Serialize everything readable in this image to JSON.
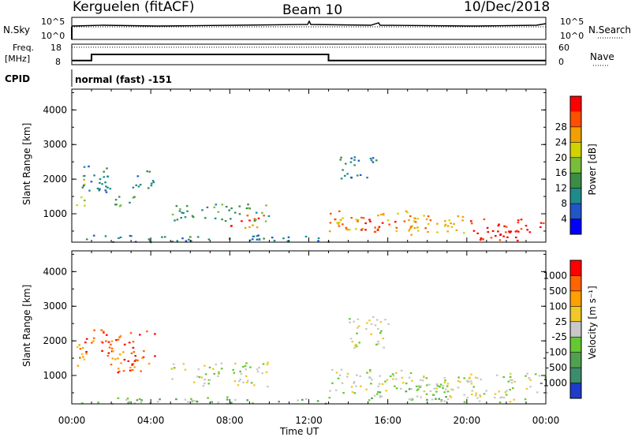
{
  "header": {
    "station": "Kerguelen (fitACF)",
    "beam": "Beam 10",
    "date": "10/Dec/2018"
  },
  "top_panels": {
    "nsky_label": "N.Sky",
    "nsearch_label": "N.Search",
    "nsky_ticks": [
      "10^5",
      "10^0"
    ],
    "nsearch_ticks": [
      "10^5",
      "10^0"
    ],
    "freq_label_1": "Freq.",
    "freq_label_2": "[MHz]",
    "freq_ticks": [
      "18",
      "8"
    ],
    "nave_label": "Nave",
    "nave_ticks": [
      "60",
      "0"
    ],
    "cpid_label": "CPID",
    "cpid_text": "normal (fast) -151",
    "freq_series": {
      "x_hours": [
        0,
        1,
        1,
        13,
        13,
        24
      ],
      "mhz": [
        10,
        10,
        13,
        13,
        10,
        10
      ]
    },
    "nave_level": 51
  },
  "chart_data": [
    {
      "type": "heatmap",
      "title": "Power",
      "ylabel": "Slant Range [km]",
      "xlabel": "Time UT",
      "x_ticks": [
        "00:00",
        "04:00",
        "08:00",
        "12:00",
        "16:00",
        "20:00",
        "00:00"
      ],
      "y_ticks": [
        "1000",
        "2000",
        "3000",
        "4000"
      ],
      "xlim": [
        0,
        24
      ],
      "ylim": [
        180,
        4600
      ],
      "colorbar": {
        "label": "Power [dB]",
        "ticks": [
          "4",
          "8",
          "12",
          "16",
          "20",
          "24",
          "28"
        ],
        "colors": [
          "#0000ff",
          "#2255c8",
          "#1e8a8a",
          "#3c8c46",
          "#78be3c",
          "#d2d200",
          "#f0a000",
          "#ff5000",
          "#ff0000"
        ]
      },
      "regions": [
        {
          "t0": 0.2,
          "t1": 0.6,
          "r0": 1200,
          "r1": 2200,
          "level": 5
        },
        {
          "t0": 0.5,
          "t1": 2.0,
          "r0": 1500,
          "r1": 2500,
          "level": 2
        },
        {
          "t0": 1.8,
          "t1": 3.2,
          "r0": 1200,
          "r1": 1600,
          "level": 3
        },
        {
          "t0": 3.0,
          "t1": 4.2,
          "r0": 1700,
          "r1": 2300,
          "level": 2
        },
        {
          "t0": 5.0,
          "t1": 10.0,
          "r0": 800,
          "r1": 1300,
          "level": 3
        },
        {
          "t0": 8.0,
          "t1": 9.8,
          "r0": 600,
          "r1": 1000,
          "level": 7
        },
        {
          "t0": 13.0,
          "t1": 17.5,
          "r0": 500,
          "r1": 1100,
          "level": 6
        },
        {
          "t0": 14.5,
          "t1": 16.5,
          "r0": 500,
          "r1": 900,
          "level": 8
        },
        {
          "t0": 17.0,
          "t1": 20.0,
          "r0": 400,
          "r1": 1000,
          "level": 6
        },
        {
          "t0": 20.0,
          "t1": 24.0,
          "r0": 250,
          "r1": 900,
          "level": 8
        },
        {
          "t0": 13.5,
          "t1": 15.5,
          "r0": 2000,
          "r1": 2700,
          "level": 2
        },
        {
          "t0": 0.0,
          "t1": 13.0,
          "r0": 200,
          "r1": 400,
          "level": 2
        }
      ]
    },
    {
      "type": "heatmap",
      "title": "Velocity",
      "ylabel": "Slant Range [km]",
      "xlabel": "Time UT",
      "x_ticks": [
        "00:00",
        "04:00",
        "08:00",
        "12:00",
        "16:00",
        "20:00",
        "00:00"
      ],
      "y_ticks": [
        "1000",
        "2000",
        "3000",
        "4000"
      ],
      "xlim": [
        0,
        24
      ],
      "ylim": [
        180,
        4600
      ],
      "colorbar": {
        "label": "Velocity [m s^-1]",
        "ticks": [
          "1000",
          "500",
          "100",
          "25",
          "-25",
          "-100",
          "-500",
          "-1000"
        ],
        "colors": [
          "#1e3cc8",
          "#3c8c6e",
          "#50a050",
          "#64c832",
          "#c8c8c8",
          "#f0c828",
          "#ffa000",
          "#ff6400",
          "#ff0000"
        ]
      },
      "regions": [
        {
          "t0": 0.2,
          "t1": 0.6,
          "r0": 1200,
          "r1": 2200,
          "level": 6
        },
        {
          "t0": 0.5,
          "t1": 2.0,
          "r0": 1500,
          "r1": 2400,
          "level": 7
        },
        {
          "t0": 1.8,
          "t1": 4.2,
          "r0": 1100,
          "r1": 2300,
          "level": 7
        },
        {
          "t0": 5.0,
          "t1": 10.0,
          "r0": 700,
          "r1": 1400,
          "level": 4
        },
        {
          "t0": 13.0,
          "t1": 17.0,
          "r0": 500,
          "r1": 1200,
          "level": 4
        },
        {
          "t0": 15.0,
          "t1": 19.0,
          "r0": 300,
          "r1": 900,
          "level": 3
        },
        {
          "t0": 17.0,
          "t1": 24.0,
          "r0": 250,
          "r1": 1100,
          "level": 4
        },
        {
          "t0": 14.0,
          "t1": 16.0,
          "r0": 1800,
          "r1": 2800,
          "level": 4
        },
        {
          "t0": 0.0,
          "t1": 13.0,
          "r0": 200,
          "r1": 400,
          "level": 3
        }
      ]
    }
  ]
}
